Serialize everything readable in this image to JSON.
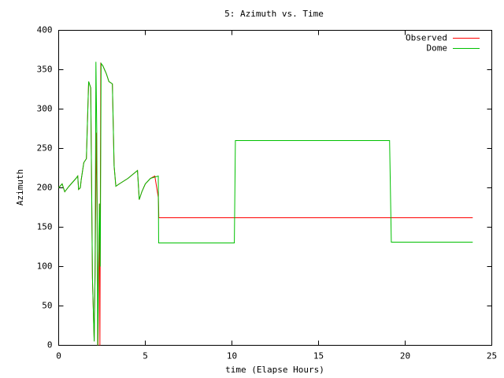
{
  "chart_data": {
    "type": "line",
    "title": "5: Azimuth vs. Time",
    "x_label": "time (Elapse Hours)",
    "y_label": "Azimuth",
    "xlim": [
      0,
      25
    ],
    "xticks": [
      0,
      5,
      10,
      15,
      20,
      25
    ],
    "ylim": [
      0,
      400
    ],
    "yticks": [
      0,
      50,
      100,
      150,
      200,
      250,
      300,
      350,
      400
    ],
    "grid": false,
    "legend": "top-right",
    "series": [
      {
        "name": "Observed",
        "color": "#ff0000",
        "x": [
          0,
          0.2,
          0.35,
          0.6,
          1.0,
          1.1,
          1.15,
          1.25,
          1.3,
          1.45,
          1.6,
          1.73,
          1.85,
          1.95,
          2.05,
          2.1,
          2.18,
          2.22,
          2.27,
          2.35,
          2.38,
          2.43,
          2.55,
          2.75,
          2.9,
          3.1,
          3.2,
          3.3,
          3.5,
          4.0,
          4.55,
          4.65,
          4.8,
          5.0,
          5.3,
          5.55,
          5.75,
          5.77,
          5.78,
          23.9
        ],
        "values": [
          200,
          205,
          195,
          202,
          212,
          215,
          198,
          200,
          210,
          232,
          237,
          335,
          327,
          85,
          5,
          90,
          270,
          180,
          0,
          180,
          0,
          358,
          355,
          345,
          335,
          332,
          228,
          202,
          205,
          212,
          222,
          185,
          195,
          205,
          212,
          215,
          188,
          175,
          162,
          162
        ]
      },
      {
        "name": "Dome",
        "color": "#00c000",
        "x": [
          0,
          0.2,
          0.35,
          0.6,
          1.0,
          1.1,
          1.15,
          1.25,
          1.3,
          1.45,
          1.6,
          1.73,
          1.85,
          1.95,
          2.05,
          2.1,
          2.15,
          2.2,
          2.25,
          2.35,
          2.4,
          2.45,
          2.55,
          2.75,
          2.9,
          3.1,
          3.2,
          3.3,
          3.5,
          4.0,
          4.55,
          4.65,
          4.8,
          5.0,
          5.3,
          5.75,
          5.77,
          10.14,
          10.2,
          19.1,
          19.2,
          23.9
        ],
        "values": [
          200,
          205,
          195,
          202,
          212,
          215,
          198,
          200,
          210,
          232,
          237,
          335,
          327,
          85,
          5,
          90,
          360,
          270,
          0,
          180,
          100,
          358,
          355,
          345,
          335,
          332,
          228,
          202,
          205,
          212,
          222,
          185,
          195,
          205,
          212,
          215,
          130,
          130,
          260,
          260,
          131,
          131
        ]
      }
    ]
  }
}
